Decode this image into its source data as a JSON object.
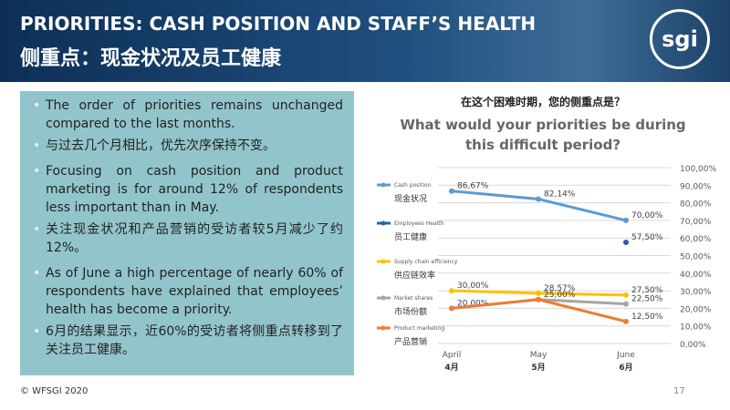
{
  "header": {
    "title": "PRIORITIES: CASH POSITION AND STAFF’S HEALTH",
    "subtitle": "侧重点：现金状况及员工健康",
    "logo": "sgi"
  },
  "bullets": [
    "The order of priorities remains unchanged compared to the last months.",
    "与过去几个月相比，优先次序保持不变。",
    "Focusing on cash position and product marketing is for around 12% of respondents less important than in May.",
    "关注现金状况和产品营销的受访者较5月减少了约12%。",
    "As of June a high percentage of nearly 60% of respondents have explained that employees’ health has become a priority.",
    "6月的结果显示，近60%的受访者将侧重点转移到了关注员工健康。"
  ],
  "footer": {
    "copyright": "© WFSGI 2020",
    "page": "17"
  },
  "chart_data": {
    "type": "line",
    "subtitle": "在这个困难时期，您的侧重点是？",
    "title": "What would your priorities be during this difficult period?",
    "categories": [
      "April",
      "May",
      "June"
    ],
    "categories_secondary": [
      "4月",
      "5月",
      "6月"
    ],
    "ylim": [
      0,
      100
    ],
    "yticks": [
      {
        "value": 0,
        "label": "0,00%"
      },
      {
        "value": 10,
        "label": "10,00%"
      },
      {
        "value": 20,
        "label": "20,00%"
      },
      {
        "value": 30,
        "label": "30,00%"
      },
      {
        "value": 40,
        "label": "40,00%"
      },
      {
        "value": 50,
        "label": "50,00%"
      },
      {
        "value": 60,
        "label": "60,00%"
      },
      {
        "value": 70,
        "label": "70,00%"
      },
      {
        "value": 80,
        "label": "80,00%"
      },
      {
        "value": 90,
        "label": "90,00%"
      },
      {
        "value": 100,
        "label": "100,00%"
      }
    ],
    "grid": true,
    "series": [
      {
        "name": "Cash position",
        "name_secondary": "现金状况",
        "color": "#5b9bd5",
        "values": [
          86.67,
          82.14,
          70.0
        ],
        "value_labels": [
          "86,67%",
          "82,14%",
          "70,00%"
        ]
      },
      {
        "name": "Employees Health",
        "name_secondary": "员工健康",
        "color": "#2e5ca8",
        "values": [
          null,
          null,
          57.5
        ],
        "value_labels": [
          null,
          null,
          "57,50%"
        ]
      },
      {
        "name": "Supply chain efficiency",
        "name_secondary": "供应链效率",
        "color": "#ffc000",
        "values": [
          30.0,
          28.57,
          27.5
        ],
        "value_labels": [
          "30,00%",
          "28,57%",
          "27,50%"
        ]
      },
      {
        "name": "Market shares",
        "name_secondary": "市场份额",
        "color": "#a5a5a5",
        "values": [
          20.0,
          25.0,
          22.5
        ],
        "value_labels": [
          "20,00%",
          "25,00%",
          "22,50%"
        ]
      },
      {
        "name": "Product marketing",
        "name_secondary": "产品营销",
        "color": "#ed7d31",
        "values": [
          20.0,
          25.0,
          12.5
        ],
        "value_labels": [
          null,
          null,
          "12,50%"
        ]
      }
    ]
  }
}
